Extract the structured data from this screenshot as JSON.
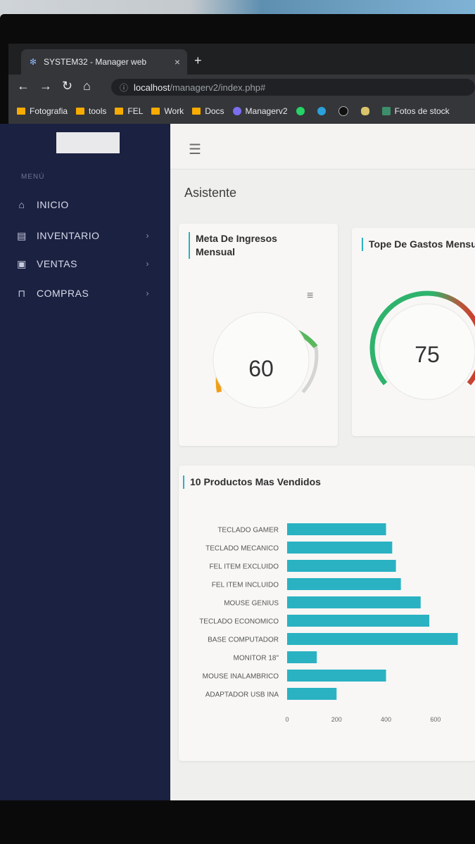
{
  "browser": {
    "tab_title": "SYSTEM32 - Manager web",
    "tab_close": "×",
    "new_tab": "+",
    "url_host": "localhost",
    "url_path": "/managerv2/index.php#",
    "bookmarks": [
      "Fotografia",
      "tools",
      "FEL",
      "Work",
      "Docs",
      "Managerv2",
      "Fotos de stock"
    ]
  },
  "sidebar": {
    "menu_header": "MENÚ",
    "items": [
      {
        "label": "INICIO",
        "icon": "home-icon",
        "has_submenu": false
      },
      {
        "label": "INVENTARIO",
        "icon": "archive-icon",
        "has_submenu": true
      },
      {
        "label": "VENTAS",
        "icon": "cash-icon",
        "has_submenu": true
      },
      {
        "label": "COMPRAS",
        "icon": "bag-icon",
        "has_submenu": true
      }
    ]
  },
  "main": {
    "page_title": "Asistente",
    "gauge1": {
      "title_line1": "Meta De Ingresos",
      "title_line2": "Mensual",
      "value": "60"
    },
    "gauge2": {
      "title": "Tope De Gastos Mensu",
      "value": "75"
    },
    "products_title": "10 Productos Mas Vendidos"
  },
  "colors": {
    "accent": "#2ab2c2",
    "sidebar": "#1b2140",
    "bar": "#2ab2c2",
    "gauge_green": "#2fb36c",
    "gauge_orange": "#f39c12",
    "gauge_red": "#d9302a"
  },
  "chart_data": {
    "type": "bar",
    "orientation": "horizontal",
    "title": "10 Productos Mas Vendidos",
    "categories": [
      "TECLADO GAMER",
      "TECLADO MECANICO",
      "FEL ITEM EXCLUIDO",
      "FEL ITEM INCLUIDO",
      "MOUSE GENIUS",
      "TECLADO ECONOMICO",
      "BASE COMPUTADOR",
      "MONITOR 18\"",
      "MOUSE INALAMBRICO",
      "ADAPTADOR USB INA"
    ],
    "values": [
      400,
      425,
      440,
      460,
      540,
      575,
      690,
      120,
      400,
      200
    ],
    "xlim": [
      0,
      700
    ],
    "xticks": [
      0,
      200,
      400,
      600
    ],
    "grid": false
  }
}
